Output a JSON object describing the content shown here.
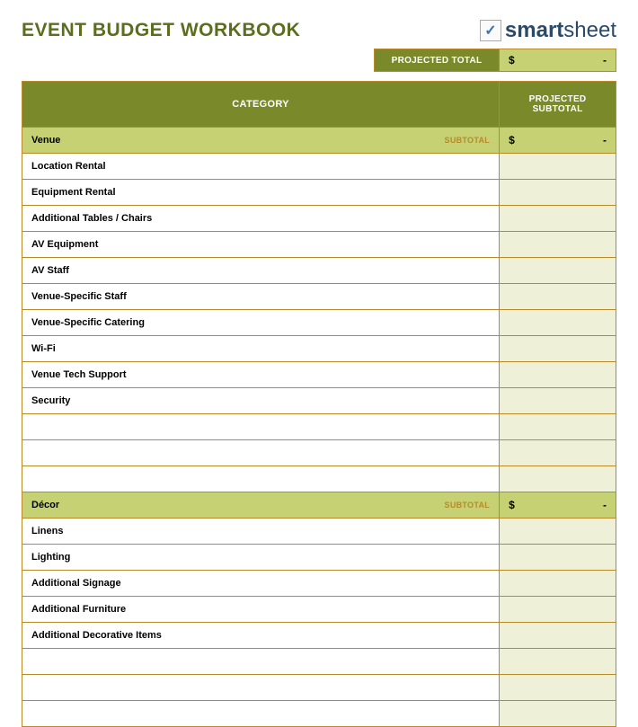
{
  "colors": {
    "title": "#5a6e1e",
    "border": "#b88a2a",
    "header_bg": "#7a8a2a",
    "section_bg": "#c5d172",
    "subtotal_text": "#b88a2a",
    "value_cell_bg": "#eef0d8",
    "page_bg": "#ffffff"
  },
  "title": "EVENT BUDGET WORKBOOK",
  "logo": {
    "brand_bold": "smart",
    "brand_light": "sheet"
  },
  "projected_total": {
    "label": "PROJECTED TOTAL",
    "currency": "$",
    "value": "-"
  },
  "headers": {
    "category": "CATEGORY",
    "projected_subtotal": "PROJECTED SUBTOTAL"
  },
  "subtotal_label": "SUBTOTAL",
  "sections": [
    {
      "name": "Venue",
      "currency": "$",
      "value": "-",
      "items": [
        "Location Rental",
        "Equipment Rental",
        "Additional Tables / Chairs",
        "AV Equipment",
        "AV Staff",
        "Venue-Specific Staff",
        "Venue-Specific Catering",
        "Wi-Fi",
        "Venue Tech Support",
        "Security",
        "",
        "",
        ""
      ]
    },
    {
      "name": "Décor",
      "currency": "$",
      "value": "-",
      "items": [
        "Linens",
        "Lighting",
        "Additional Signage",
        "Additional Furniture",
        "Additional Decorative Items",
        "",
        "",
        ""
      ]
    }
  ]
}
